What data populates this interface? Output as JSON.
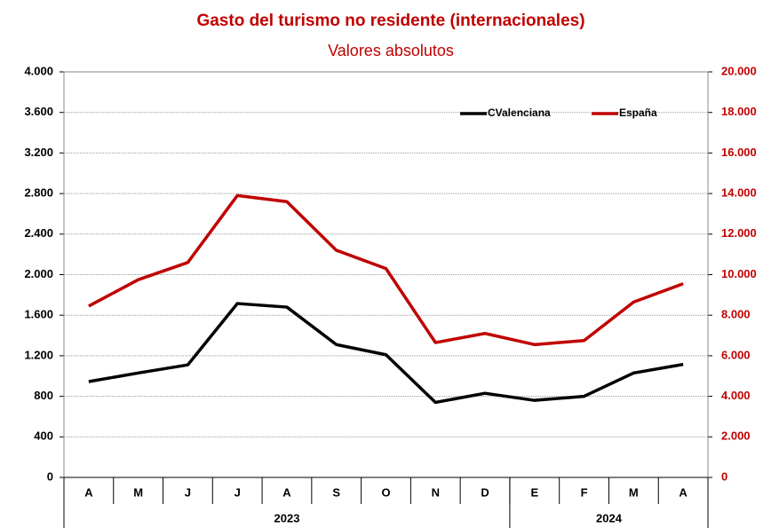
{
  "chart_data": {
    "type": "line",
    "title": "Gasto del turismo no residente (internacionales)",
    "subtitle": "Valores absolutos",
    "categories": [
      "A",
      "M",
      "J",
      "J",
      "A",
      "S",
      "O",
      "N",
      "D",
      "E",
      "F",
      "M",
      "A"
    ],
    "x_groups": [
      {
        "label": "2023",
        "count": 9
      },
      {
        "label": "2024",
        "count": 4
      }
    ],
    "series": [
      {
        "name": "CValenciana",
        "color": "#000000",
        "axis": "y",
        "values": [
          945,
          1030,
          1110,
          1715,
          1680,
          1310,
          1210,
          740,
          830,
          760,
          800,
          1030,
          1115
        ]
      },
      {
        "name": "España",
        "color": "#c00000",
        "axis": "y2",
        "values": [
          8450,
          9750,
          10600,
          13900,
          13600,
          11200,
          10300,
          6650,
          7100,
          6550,
          6750,
          8650,
          9550
        ]
      }
    ],
    "ylim": [
      0,
      4000
    ],
    "yticks": [
      0,
      400,
      800,
      {
        "value": 1200,
        "label": "1.200"
      },
      {
        "value": 1600,
        "label": "1.600"
      },
      {
        "value": 2000,
        "label": "2.000"
      },
      {
        "value": 2400,
        "label": "2.400"
      },
      {
        "value": 2800,
        "label": "2.800"
      },
      {
        "value": 3200,
        "label": "3.200"
      },
      {
        "value": 3600,
        "label": "3.600"
      },
      {
        "value": 4000,
        "label": "4.000"
      }
    ],
    "y2lim": [
      0,
      20000
    ],
    "y2ticks": [
      0,
      {
        "value": 2000,
        "label": "2.000"
      },
      {
        "value": 4000,
        "label": "4.000"
      },
      {
        "value": 6000,
        "label": "6.000"
      },
      {
        "value": 8000,
        "label": "8.000"
      },
      {
        "value": 10000,
        "label": "10.000"
      },
      {
        "value": 12000,
        "label": "12.000"
      },
      {
        "value": 14000,
        "label": "14.000"
      },
      {
        "value": 16000,
        "label": "16.000"
      },
      {
        "value": 18000,
        "label": "18.000"
      },
      {
        "value": 20000,
        "label": "20.000"
      }
    ],
    "y2color": "#c00000",
    "grid": true,
    "legend": "top-right"
  }
}
